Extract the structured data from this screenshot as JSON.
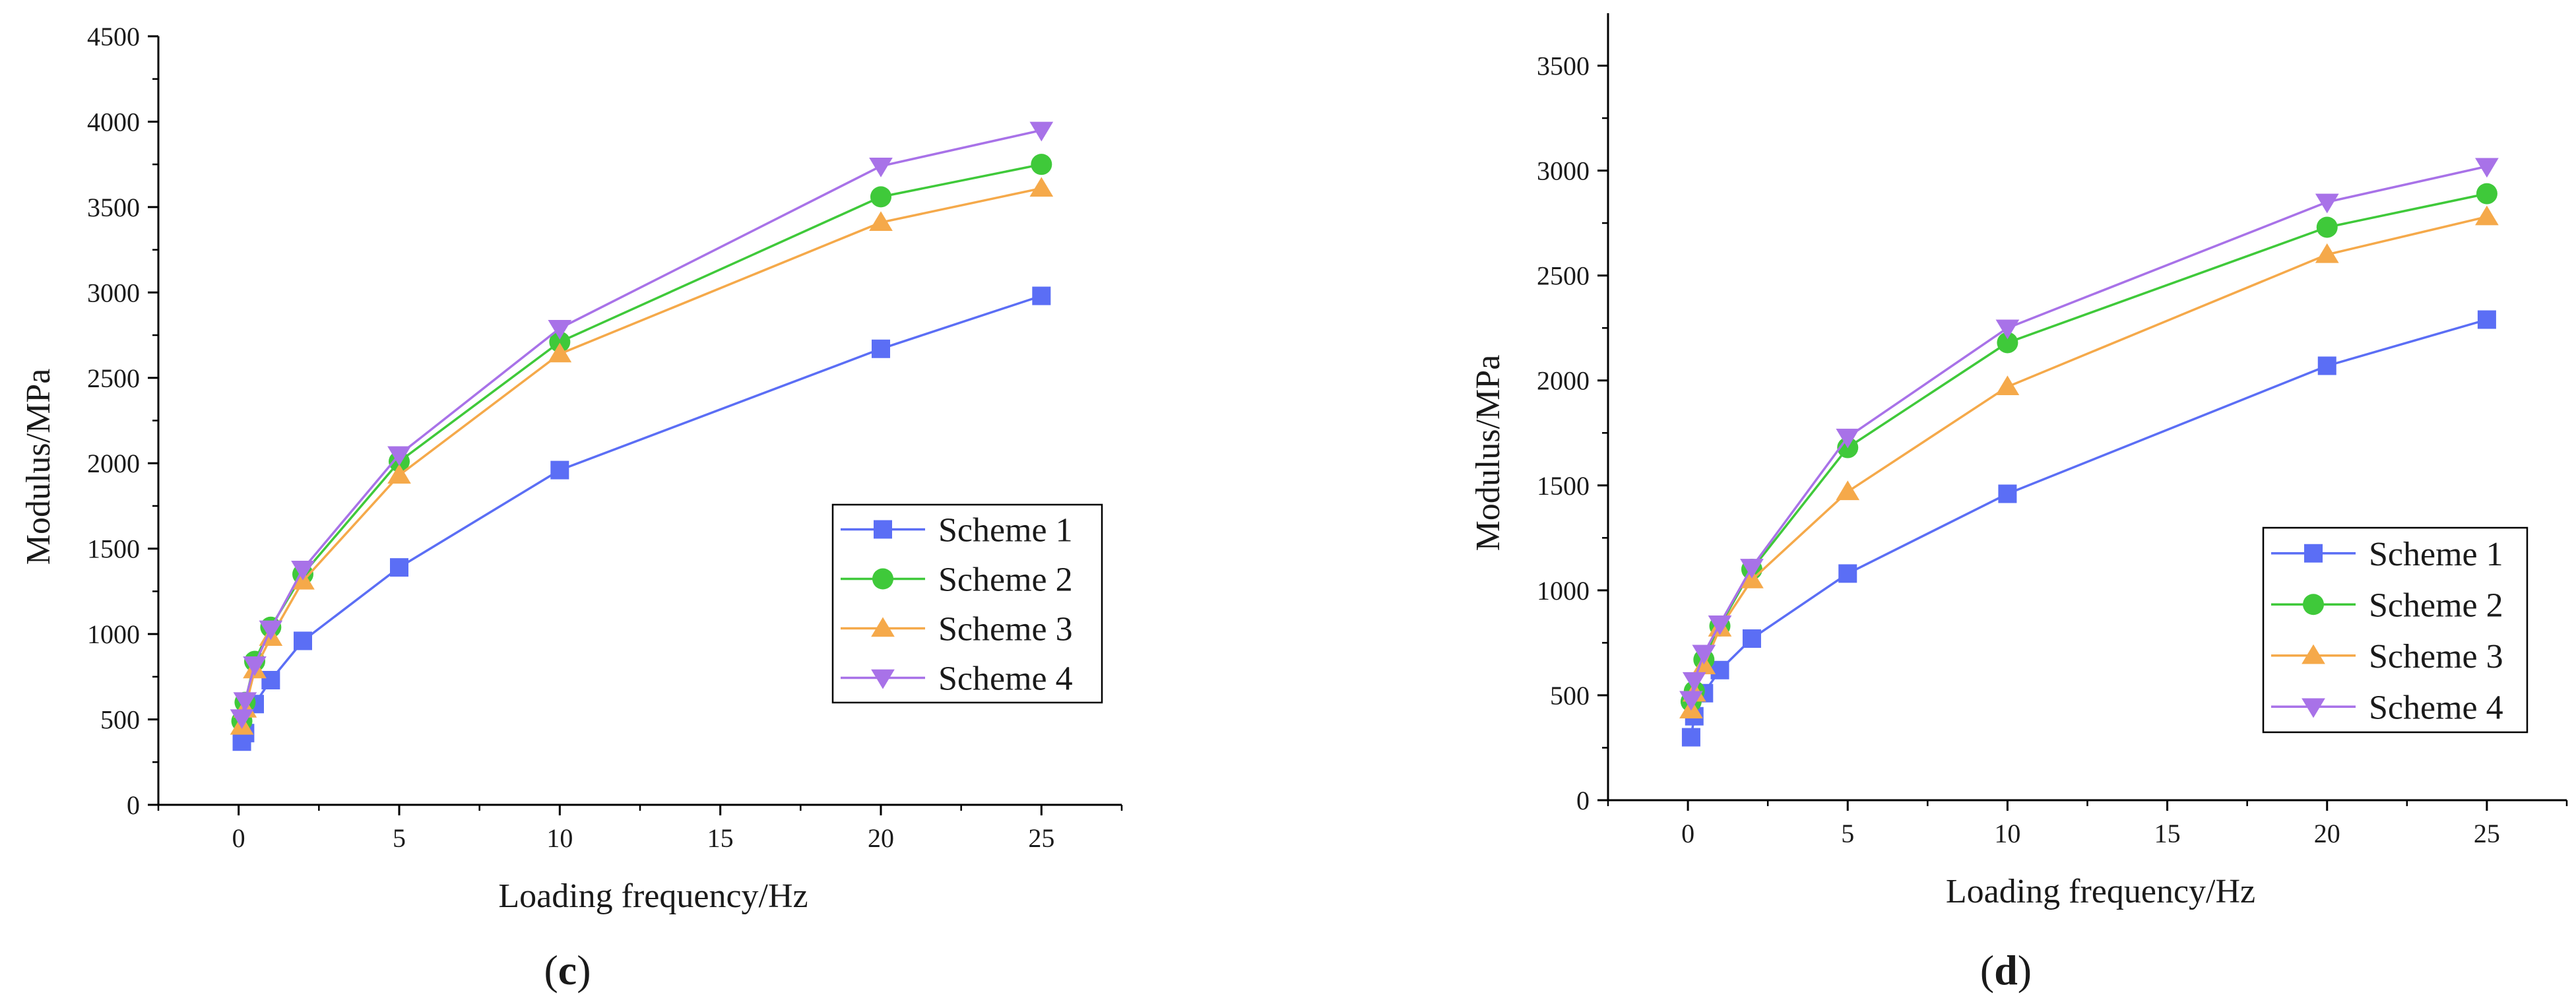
{
  "chart_data": [
    {
      "type": "line",
      "panel_label": "c",
      "xlabel": "Loading frequency/Hz",
      "ylabel": "Modulus/MPa",
      "xlim": [
        -2.5,
        27.5
      ],
      "ylim": [
        0,
        4500
      ],
      "xticks": [
        0,
        5,
        10,
        15,
        20,
        25
      ],
      "yticks": [
        0,
        500,
        1000,
        1500,
        2000,
        2500,
        3000,
        3500,
        4000,
        4500
      ],
      "grid": false,
      "legend_position": "center-right",
      "x": [
        0.1,
        0.2,
        0.5,
        1,
        2,
        5,
        10,
        20,
        25
      ],
      "series": [
        {
          "name": "Scheme 1",
          "color": "#5b6ef5",
          "marker": "square",
          "values": [
            370,
            420,
            590,
            730,
            960,
            1390,
            1960,
            2670,
            2980
          ]
        },
        {
          "name": "Scheme 2",
          "color": "#3fc93a",
          "marker": "circle",
          "values": [
            490,
            600,
            840,
            1040,
            1350,
            2010,
            2710,
            3560,
            3750
          ]
        },
        {
          "name": "Scheme 3",
          "color": "#f5a94a",
          "marker": "triangle-up",
          "values": [
            460,
            560,
            790,
            980,
            1310,
            1930,
            2640,
            3410,
            3610
          ]
        },
        {
          "name": "Scheme 4",
          "color": "#a872e8",
          "marker": "triangle-down",
          "values": [
            510,
            610,
            820,
            1030,
            1380,
            2050,
            2790,
            3740,
            3950
          ]
        }
      ]
    },
    {
      "type": "line",
      "panel_label": "d",
      "xlabel": "Loading frequency/Hz",
      "ylabel": "Modulus/MPa",
      "xlim": [
        -2.5,
        27.5
      ],
      "ylim": [
        0,
        3750
      ],
      "xticks": [
        0,
        5,
        10,
        15,
        20,
        25
      ],
      "yticks": [
        0,
        500,
        1000,
        1500,
        2000,
        2500,
        3000,
        3500
      ],
      "grid": false,
      "legend_position": "center-right",
      "x": [
        0.1,
        0.2,
        0.5,
        1,
        2,
        5,
        10,
        20,
        25
      ],
      "series": [
        {
          "name": "Scheme 1",
          "color": "#5b6ef5",
          "marker": "square",
          "values": [
            300,
            400,
            510,
            620,
            770,
            1080,
            1460,
            2070,
            2290
          ]
        },
        {
          "name": "Scheme 2",
          "color": "#3fc93a",
          "marker": "circle",
          "values": [
            470,
            520,
            670,
            830,
            1100,
            1680,
            2180,
            2730,
            2890
          ]
        },
        {
          "name": "Scheme 3",
          "color": "#f5a94a",
          "marker": "triangle-up",
          "values": [
            430,
            510,
            640,
            820,
            1050,
            1470,
            1970,
            2600,
            2780
          ]
        },
        {
          "name": "Scheme 4",
          "color": "#a872e8",
          "marker": "triangle-down",
          "values": [
            480,
            570,
            700,
            840,
            1110,
            1730,
            2250,
            2850,
            3020
          ]
        }
      ]
    }
  ]
}
